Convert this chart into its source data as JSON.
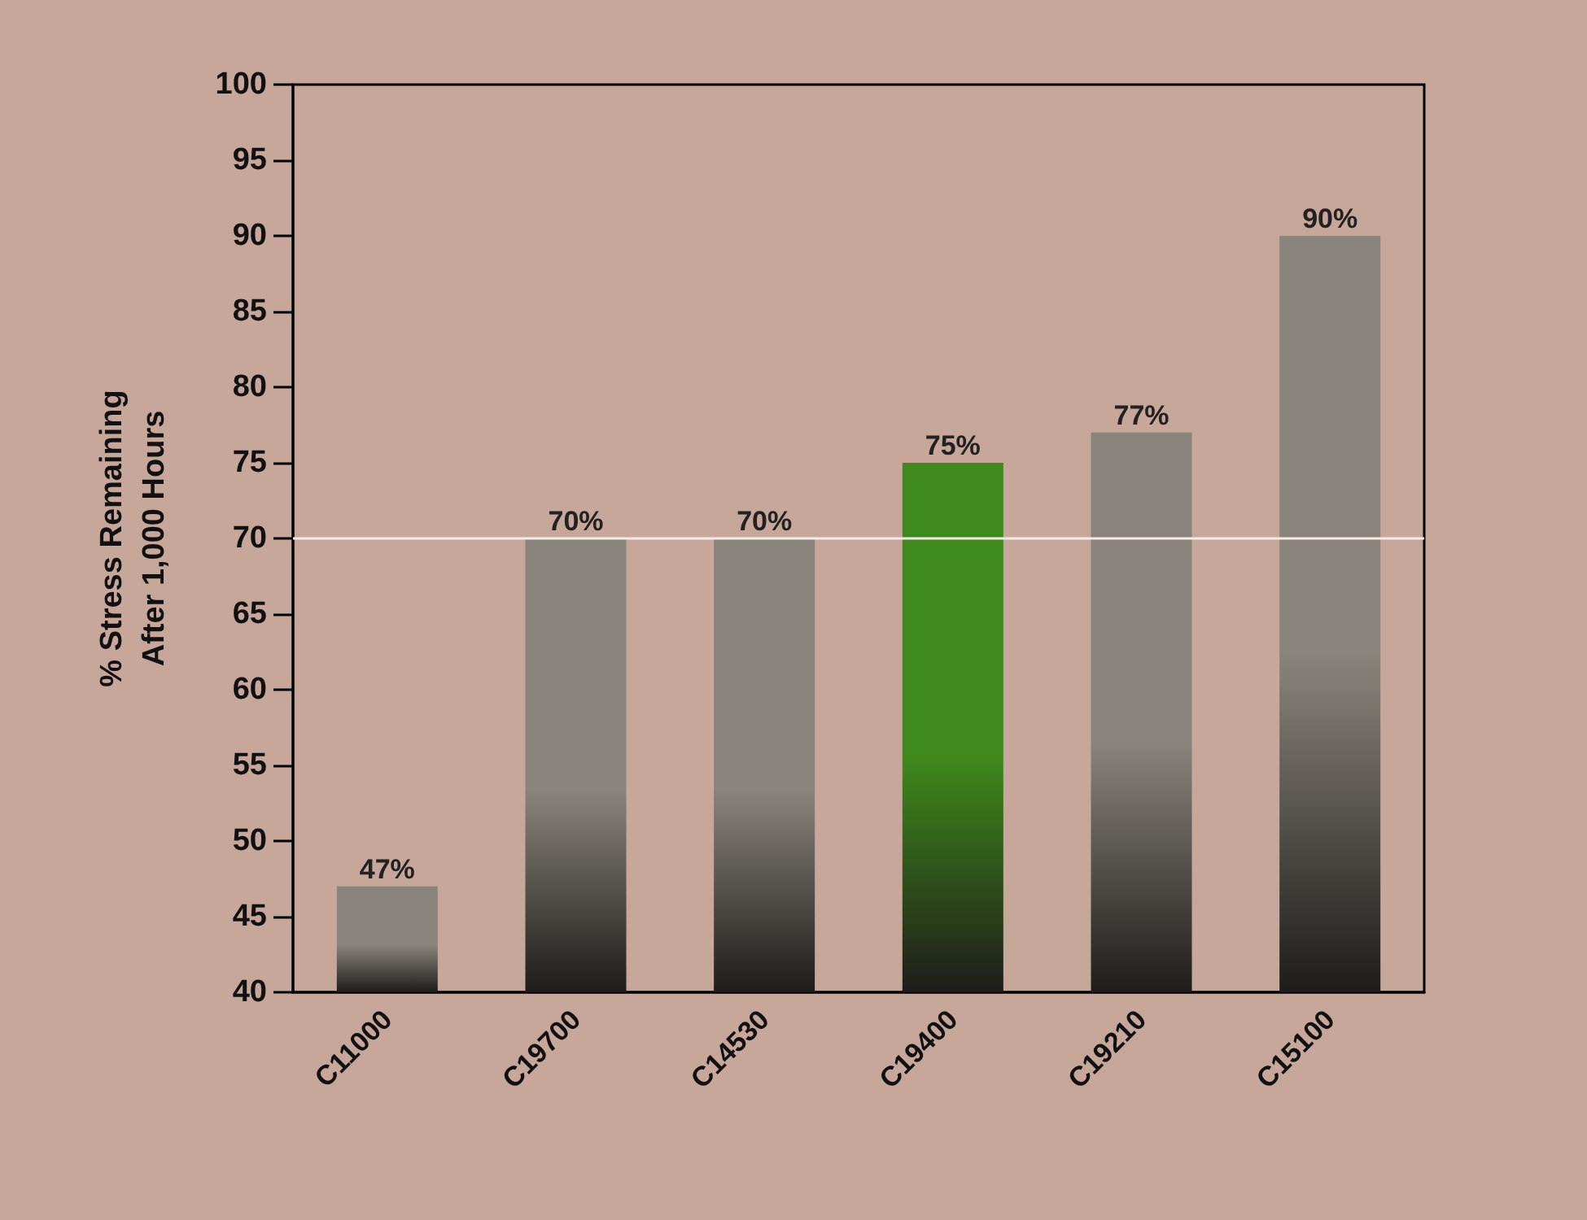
{
  "chart_data": {
    "type": "bar",
    "ylabel": "% Stress Remaining\nAfter 1,000 Hours",
    "categories": [
      "C11000",
      "C19700",
      "C14530",
      "C19400",
      "C19210",
      "C15100"
    ],
    "values": [
      47,
      70,
      70,
      75,
      77,
      90
    ],
    "colors": [
      "#8a857c",
      "#8a857c",
      "#8a857c",
      "#3f8a1c",
      "#8a857c",
      "#8a857c"
    ],
    "value_labels": [
      "47%",
      "70%",
      "70%",
      "75%",
      "77%",
      "90%"
    ],
    "ylim": [
      40,
      100
    ],
    "yticks": [
      40,
      45,
      50,
      55,
      60,
      65,
      70,
      75,
      80,
      85,
      90,
      95,
      100
    ],
    "ref_lines": [
      {
        "axis": "y",
        "value": 70,
        "color": "#f4ece6"
      }
    ],
    "grid": false
  }
}
